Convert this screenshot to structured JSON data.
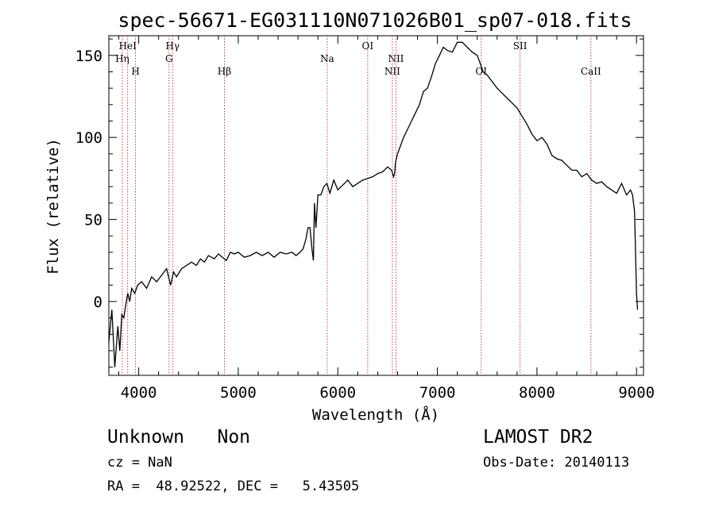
{
  "chart_data": {
    "type": "line",
    "title": "spec-56671-EG031110N071026B01_sp07-018.fits",
    "xlabel": "Wavelength (Å)",
    "ylabel": "Flux (relative)",
    "xlim": [
      3700,
      9070
    ],
    "ylim": [
      -45,
      162
    ],
    "x_ticks": [
      4000,
      5000,
      6000,
      7000,
      8000,
      9000
    ],
    "y_ticks": [
      0,
      50,
      100,
      150
    ],
    "grid": false,
    "series": [
      {
        "color": "#000000",
        "x": [
          3700,
          3730,
          3760,
          3790,
          3810,
          3830,
          3850,
          3870,
          3890,
          3910,
          3930,
          3960,
          3990,
          4030,
          4080,
          4130,
          4180,
          4230,
          4280,
          4320,
          4350,
          4380,
          4430,
          4480,
          4530,
          4580,
          4620,
          4660,
          4700,
          4760,
          4800,
          4840,
          4880,
          4920,
          4960,
          5000,
          5060,
          5120,
          5180,
          5240,
          5300,
          5360,
          5420,
          5480,
          5540,
          5580,
          5620,
          5650,
          5680,
          5700,
          5720,
          5740,
          5755,
          5765,
          5780,
          5800,
          5830,
          5860,
          5890,
          5920,
          5960,
          6000,
          6050,
          6100,
          6150,
          6200,
          6250,
          6300,
          6350,
          6400,
          6450,
          6500,
          6540,
          6560,
          6570,
          6580,
          6600,
          6630,
          6660,
          6700,
          6740,
          6780,
          6820,
          6860,
          6900,
          6940,
          6980,
          7020,
          7060,
          7100,
          7150,
          7200,
          7250,
          7300,
          7350,
          7400,
          7430,
          7460,
          7500,
          7550,
          7600,
          7650,
          7700,
          7750,
          7800,
          7850,
          7900,
          7950,
          8000,
          8050,
          8100,
          8150,
          8200,
          8250,
          8300,
          8350,
          8400,
          8450,
          8500,
          8550,
          8600,
          8650,
          8700,
          8750,
          8800,
          8850,
          8900,
          8940,
          8960,
          8980,
          8990,
          9000,
          9010
        ],
        "y": [
          -25,
          -5,
          -40,
          -15,
          -30,
          -8,
          -10,
          -2,
          5,
          0,
          8,
          5,
          10,
          12,
          8,
          15,
          12,
          16,
          20,
          10,
          18,
          15,
          20,
          22,
          24,
          22,
          26,
          24,
          28,
          26,
          29,
          27,
          25,
          30,
          29,
          30,
          27,
          28,
          30,
          28,
          30,
          27,
          30,
          29,
          30,
          28,
          30,
          32,
          38,
          45,
          45,
          32,
          25,
          60,
          45,
          65,
          65,
          70,
          72,
          66,
          74,
          68,
          71,
          74,
          70,
          72,
          74,
          75,
          76,
          78,
          79,
          82,
          80,
          76,
          78,
          85,
          90,
          95,
          100,
          105,
          110,
          115,
          120,
          128,
          130,
          137,
          145,
          150,
          155,
          153,
          152,
          158,
          158,
          155,
          152,
          150,
          145,
          140,
          138,
          134,
          130,
          127,
          124,
          121,
          118,
          113,
          108,
          102,
          98,
          100,
          96,
          89,
          87,
          86,
          83,
          80,
          80,
          76,
          78,
          74,
          72,
          73,
          70,
          68,
          66,
          72,
          65,
          68,
          65,
          55,
          30,
          5,
          -5
        ]
      }
    ],
    "line_markers": [
      {
        "label": "Hη",
        "x": 3835
      },
      {
        "label": "HeI",
        "x": 3889
      },
      {
        "label": "H",
        "x": 3968
      },
      {
        "label": "Hγ",
        "x": 4340
      },
      {
        "label": "G",
        "x": 4305
      },
      {
        "label": "Hβ",
        "x": 4861
      },
      {
        "label": "Na",
        "x": 5893
      },
      {
        "label": "OI",
        "x": 6300
      },
      {
        "label": "NII",
        "x": 6584
      },
      {
        "label": "NII",
        "x": 6548
      },
      {
        "label": "OI",
        "x": 7440
      },
      {
        "label": "SII",
        "x": 7830
      },
      {
        "label": "CaII",
        "x": 8542
      }
    ]
  },
  "info": {
    "class_line": "Unknown   Non",
    "survey": "LAMOST DR2",
    "cz": "cz = NaN",
    "obs_date": "Obs-Date: 20140113",
    "coords": "RA =  48.92522, DEC =   5.43505"
  }
}
